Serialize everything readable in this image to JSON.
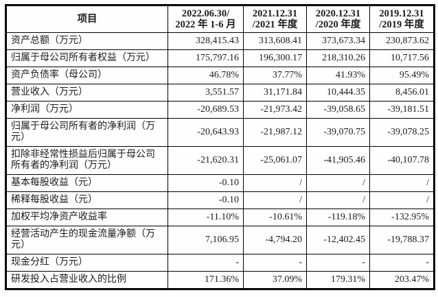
{
  "table": {
    "header": {
      "item_label": "项目",
      "periods": [
        {
          "line1": "2022.06.30/",
          "line2": "2022 年 1-6 月"
        },
        {
          "line1": "2021.12.31",
          "line2": "/2021 年度"
        },
        {
          "line1": "2020.12.31",
          "line2": "/2020 年度"
        },
        {
          "line1": "2019.12.31",
          "line2": "/2019 年度"
        }
      ]
    },
    "rows": [
      {
        "label": "资产总额（万元）",
        "values": [
          "328,415.43",
          "313,608.41",
          "373,673.34",
          "230,873.62"
        ]
      },
      {
        "label": "归属于母公司所有者权益（万元）",
        "values": [
          "175,797.16",
          "196,300.17",
          "218,310.26",
          "10,717.56"
        ]
      },
      {
        "label": "资产负债率（母公司）",
        "values": [
          "46.78%",
          "37.77%",
          "41.93%",
          "95.49%"
        ]
      },
      {
        "label": "营业收入（万元）",
        "values": [
          "3,551.57",
          "31,171.84",
          "10,444.35",
          "8,456.01"
        ]
      },
      {
        "label": "净利润（万元）",
        "values": [
          "-20,689.53",
          "-21,973.42",
          "-39,058.65",
          "-39,181.51"
        ]
      },
      {
        "label": "归属于母公司所有者的净利润（万元）",
        "values": [
          "-20,643.93",
          "-21,987.12",
          "-39,070.75",
          "-39,078.25"
        ]
      },
      {
        "label": "扣除非经常性损益后归属于母公司所有者的净利润（万元）",
        "values": [
          "-21,620.31",
          "-25,061.07",
          "-41,905.46",
          "-40,107.78"
        ]
      },
      {
        "label": "基本每股收益（元）",
        "values": [
          "-0.10",
          "/",
          "/",
          "/"
        ]
      },
      {
        "label": "稀释每股收益（元）",
        "values": [
          "-0.10",
          "/",
          "/",
          "/"
        ]
      },
      {
        "label": "加权平均净资产收益率",
        "values": [
          "-11.10%",
          "-10.61%",
          "-119.18%",
          "-132.95%"
        ]
      },
      {
        "label": "经营活动产生的现金流量净额（万元）",
        "values": [
          "7,106.95",
          "-4,794.20",
          "-12,402.45",
          "-19,788.37"
        ]
      },
      {
        "label": "现金分红（万元）",
        "values": [
          "-",
          "-",
          "-",
          "-"
        ]
      },
      {
        "label": "研发投入占营业收入的比例",
        "values": [
          "171.36%",
          "37.09%",
          "179.31%",
          "203.47%"
        ]
      }
    ]
  },
  "colors": {
    "border": "#000000",
    "text": "#1b1b1b",
    "background": "#fefefe"
  }
}
